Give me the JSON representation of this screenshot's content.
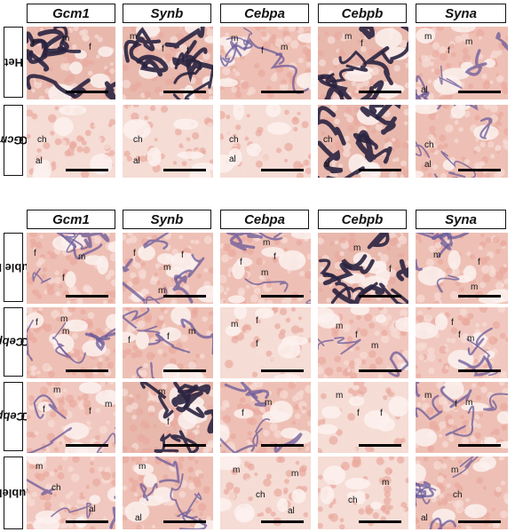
{
  "top_block": {
    "genes": [
      "Gcm1",
      "Synb",
      "Cebpa",
      "Cebpb",
      "Syna"
    ],
    "rows": [
      {
        "label": "Het",
        "label_gene": "",
        "label_suffix": "Het"
      },
      {
        "label": "Gcm1 KO",
        "label_gene": "Gcm1",
        "label_suffix": " KO"
      }
    ]
  },
  "bottom_block": {
    "genes": [
      "Gcm1",
      "Synb",
      "Cebpa",
      "Cebpb",
      "Syna"
    ],
    "rows": [
      {
        "label": "Double Het",
        "label_gene": "",
        "label_suffix": "Double Het"
      },
      {
        "label": "Cebpa KO",
        "label_gene": "Cebpa",
        "label_suffix": " KO"
      },
      {
        "label": "Cebpb KO",
        "label_gene": "Cebpb",
        "label_suffix": " KO"
      },
      {
        "label": "DoubleKO",
        "label_gene": "",
        "label_suffix": "DoubleKO"
      }
    ]
  },
  "panel_labels": {
    "f": "f",
    "m": "m",
    "ch": "ch",
    "al": "al"
  },
  "colors": {
    "tissue_pink": "#f2c9c0",
    "stain_dark": "#2a2440",
    "stain_purple": "#6a5a9a"
  }
}
